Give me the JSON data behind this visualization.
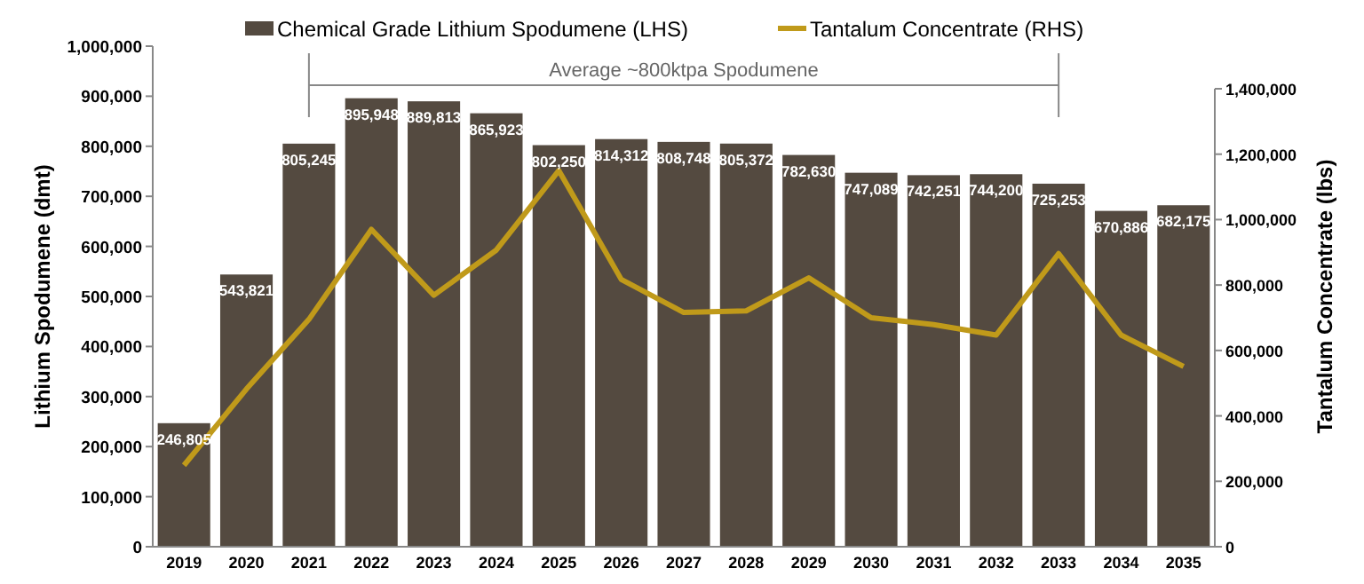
{
  "chart_data": {
    "type": "bar",
    "categories": [
      "2019",
      "2020",
      "2021",
      "2022",
      "2023",
      "2024",
      "2025",
      "2026",
      "2027",
      "2028",
      "2029",
      "2030",
      "2031",
      "2032",
      "2033",
      "2034",
      "2035"
    ],
    "series": [
      {
        "name": "Chemical Grade Lithium Spodumene (LHS)",
        "color": "#544a40",
        "values": [
          246805,
          543821,
          805245,
          895948,
          889813,
          865923,
          802250,
          814312,
          808748,
          805372,
          782630,
          747089,
          742251,
          744200,
          725253,
          670886,
          682175
        ]
      },
      {
        "name": "Tantalum Concentrate (RHS)",
        "type": "line",
        "axis": "y2",
        "color": "#c09a1a",
        "values": [
          249000,
          482000,
          695000,
          970000,
          769000,
          907000,
          1150000,
          817000,
          716000,
          721000,
          822000,
          700000,
          679000,
          647000,
          896000,
          647000,
          551000
        ]
      }
    ],
    "ylabel": "Lithium Spodumene (dmt)",
    "y2label": "Tantalum Concentrate (lbs)",
    "ylim": [
      0,
      1000000
    ],
    "yticks": [
      {
        "value": 0,
        "label": "0"
      },
      {
        "value": 100000,
        "label": "100,000"
      },
      {
        "value": 200000,
        "label": "200,000"
      },
      {
        "value": 300000,
        "label": "300,000"
      },
      {
        "value": 400000,
        "label": "400,000"
      },
      {
        "value": 500000,
        "label": "500,000"
      },
      {
        "value": 600000,
        "label": "600,000"
      },
      {
        "value": 700000,
        "label": "700,000"
      },
      {
        "value": 800000,
        "label": "800,000"
      },
      {
        "value": 900000,
        "label": "900,000"
      },
      {
        "value": 1000000,
        "label": "1,000,000"
      }
    ],
    "y2lim": [
      0,
      1400000
    ],
    "y2ticks": [
      {
        "value": 0,
        "label": "0"
      },
      {
        "value": 200000,
        "label": "200,000"
      },
      {
        "value": 400000,
        "label": "400,000"
      },
      {
        "value": 600000,
        "label": "600,000"
      },
      {
        "value": 800000,
        "label": "800,000"
      },
      {
        "value": 1000000,
        "label": "1,000,000"
      },
      {
        "value": 1200000,
        "label": "1,200,000"
      },
      {
        "value": 1400000,
        "label": "1,400,000"
      }
    ],
    "annotations": [
      "Average ~800ktpa Spodumene"
    ],
    "value_labels": [
      "246,805",
      "543,821",
      "805,245",
      "895,948",
      "889,813",
      "865,923",
      "802,250",
      "814,312",
      "808,748",
      "805,372",
      "782,630",
      "747,089",
      "742,251",
      "744,200",
      "725,253",
      "670,886",
      "682,175"
    ],
    "legend": "top",
    "grid": false,
    "marker": "none"
  }
}
